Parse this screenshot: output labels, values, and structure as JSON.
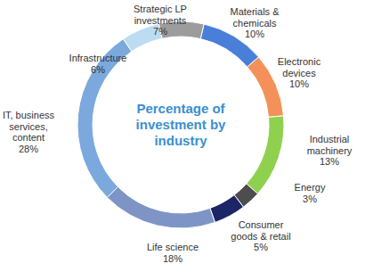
{
  "chart_data": {
    "type": "donut",
    "title": "Percentage of investment by industry",
    "categories": [
      "Materials & chemicals",
      "Electronic devices",
      "Industrial machinery",
      "Energy",
      "Consumer goods & retail",
      "Life science",
      "IT, business services, content",
      "Infrastructure",
      "Strategic LP investments"
    ],
    "values": [
      10,
      10,
      13,
      3,
      5,
      18,
      28,
      6,
      7
    ],
    "value_labels": [
      "10%",
      "10%",
      "13%",
      "3%",
      "5%",
      "18%",
      "28%",
      "6%",
      "7%"
    ],
    "colors": [
      "#4a7fd9",
      "#f4915a",
      "#8fd14f",
      "#4d4d4d",
      "#1c2566",
      "#7f94c6",
      "#7ba9dd",
      "#bcdcf1",
      "#9c9c9c"
    ],
    "data_labels": true
  }
}
